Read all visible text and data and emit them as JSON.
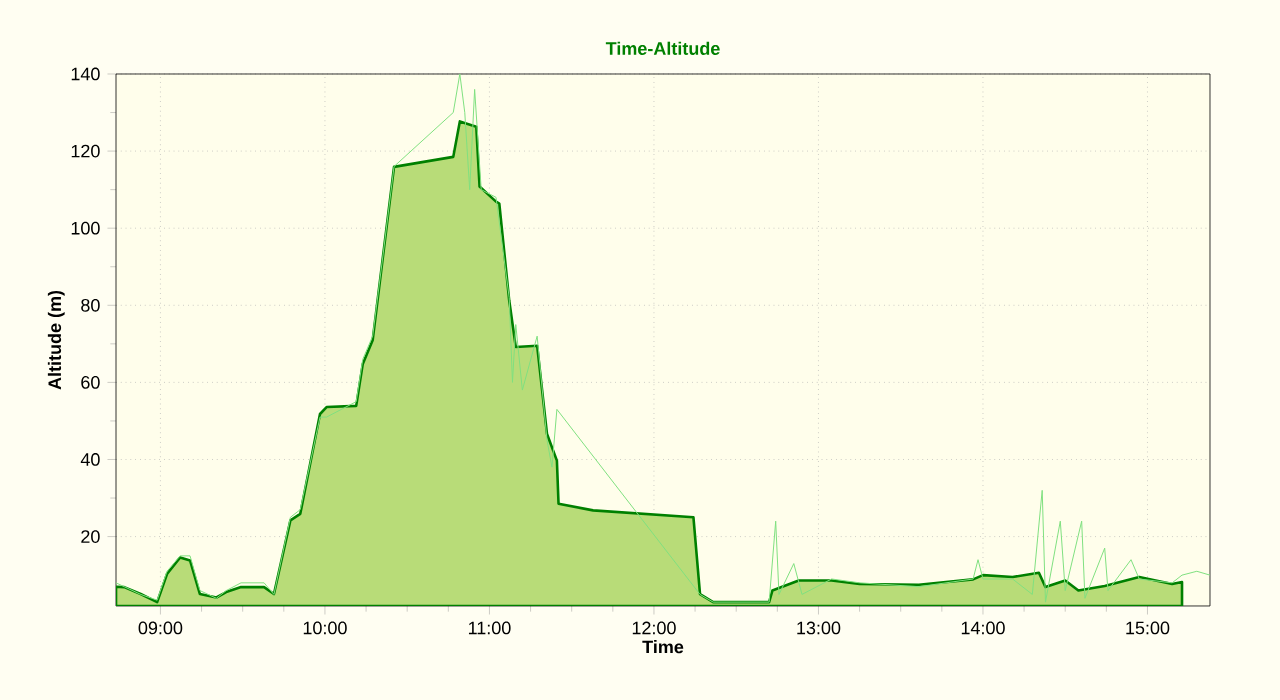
{
  "chart_data": {
    "type": "area",
    "title": "Time-Altitude",
    "xlabel": "Time",
    "ylabel": "Altitude (m)",
    "xlim": [
      8.73,
      15.38
    ],
    "ylim": [
      2,
      140
    ],
    "xticks": [
      {
        "value": 9,
        "label": "09:00"
      },
      {
        "value": 10,
        "label": "10:00"
      },
      {
        "value": 11,
        "label": "11:00"
      },
      {
        "value": 12,
        "label": "12:00"
      },
      {
        "value": 13,
        "label": "13:00"
      },
      {
        "value": 14,
        "label": "14:00"
      },
      {
        "value": 15,
        "label": "15:00"
      }
    ],
    "yticks": [
      20,
      40,
      60,
      80,
      100,
      120,
      140
    ],
    "grid": true,
    "marker": "none",
    "series": [
      {
        "color": "#b8dc78",
        "x": [
          8.73,
          8.78,
          8.88,
          8.98,
          9.04,
          9.12,
          9.18,
          9.24,
          9.34,
          9.4,
          9.49,
          9.63,
          9.69,
          9.79,
          9.85,
          9.97,
          10.01,
          10.19,
          10.23,
          10.29,
          10.35,
          10.42,
          10.78,
          10.82,
          10.92,
          10.94,
          11.04,
          11.06,
          11.12,
          11.16,
          11.29,
          11.35,
          11.41,
          11.42,
          11.63,
          12.24,
          12.28,
          12.36,
          12.7,
          12.72,
          12.88,
          13.08,
          13.25,
          13.61,
          13.94,
          14.0,
          14.18,
          14.34,
          14.38,
          14.5,
          14.58,
          14.74,
          14.95,
          15.15,
          15.21
        ],
        "values": [
          7,
          6.9,
          5.1,
          3,
          10.3,
          14.6,
          13.8,
          5.1,
          4.2,
          5.6,
          6.9,
          6.9,
          5.1,
          24.2,
          25.9,
          51.8,
          53.6,
          53.9,
          64.8,
          70.9,
          91.7,
          115.9,
          118.5,
          127.7,
          126.3,
          110.8,
          106.9,
          106.4,
          81.3,
          69.2,
          69.5,
          46.6,
          39.7,
          28.5,
          26.8,
          25,
          5.1,
          3,
          3,
          6,
          8.6,
          8.6,
          7.7,
          7.5,
          8.9,
          10,
          9.5,
          10.6,
          6.9,
          8.6,
          6,
          7.2,
          9.5,
          7.7,
          8.2
        ]
      },
      {
        "type": "line",
        "color": "#80e080",
        "x": [
          8.73,
          8.78,
          8.88,
          8.98,
          9.04,
          9.12,
          9.18,
          9.24,
          9.34,
          9.4,
          9.49,
          9.63,
          9.69,
          9.79,
          9.85,
          9.97,
          10.01,
          10.19,
          10.23,
          10.29,
          10.35,
          10.42,
          10.78,
          10.82,
          10.85,
          10.88,
          10.91,
          10.95,
          11.04,
          11.12,
          11.14,
          11.16,
          11.2,
          11.29,
          11.35,
          11.38,
          11.41,
          12.28,
          12.36,
          12.7,
          12.74,
          12.76,
          12.85,
          12.9,
          13.08,
          13.25,
          13.61,
          13.94,
          13.97,
          14.0,
          14.18,
          14.3,
          14.36,
          14.38,
          14.47,
          14.5,
          14.6,
          14.62,
          14.74,
          14.76,
          14.9,
          14.95,
          15.15,
          15.21,
          15.3,
          15.38
        ],
        "values": [
          8,
          7,
          5,
          3.5,
          11,
          15,
          15,
          6,
          4,
          6,
          8,
          8,
          5,
          25,
          27,
          51,
          51,
          55,
          66,
          72,
          92,
          116,
          130,
          140,
          130,
          110,
          136,
          110,
          108,
          82,
          60,
          75,
          58,
          72,
          45,
          38,
          53,
          5,
          3,
          3,
          24,
          5,
          13,
          5,
          9,
          8,
          7,
          9,
          14,
          9,
          9,
          5,
          32,
          3,
          24,
          6,
          24,
          4,
          17,
          6,
          14,
          9,
          8,
          10,
          11,
          10
        ]
      }
    ]
  }
}
